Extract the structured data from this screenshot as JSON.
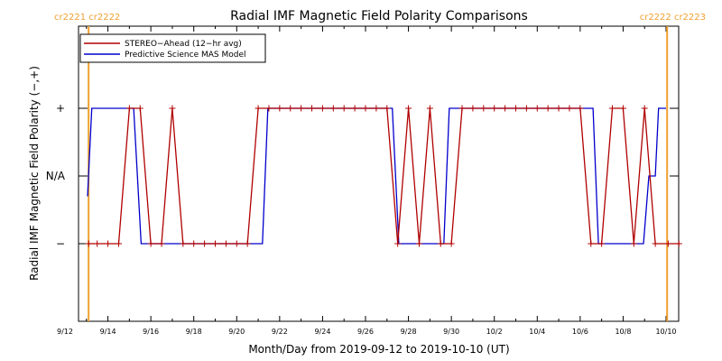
{
  "chart_data": {
    "type": "line",
    "title": "Radial IMF Magnetic Field Polarity Comparisons",
    "xlabel": "Month/Day from 2019-09-12 to 2019-10-10 (UT)",
    "ylabel": "Radial IMF Magnetic Field Polarity (−,+)",
    "x_range_days": [
      0,
      28
    ],
    "y_categories": [
      "−",
      "N/A",
      "+"
    ],
    "y_values": [
      -1,
      0,
      1
    ],
    "ylim": [
      -2,
      2
    ],
    "x_ticks": [
      {
        "day": 0,
        "label": "9/12"
      },
      {
        "day": 2,
        "label": "9/14"
      },
      {
        "day": 4,
        "label": "9/16"
      },
      {
        "day": 6,
        "label": "9/18"
      },
      {
        "day": 8,
        "label": "9/20"
      },
      {
        "day": 10,
        "label": "9/22"
      },
      {
        "day": 12,
        "label": "9/24"
      },
      {
        "day": 14,
        "label": "9/26"
      },
      {
        "day": 16,
        "label": "9/28"
      },
      {
        "day": 18,
        "label": "9/30"
      },
      {
        "day": 20,
        "label": "10/2"
      },
      {
        "day": 22,
        "label": "10/4"
      },
      {
        "day": 24,
        "label": "10/6"
      },
      {
        "day": 26,
        "label": "10/8"
      },
      {
        "day": 28,
        "label": "10/10"
      }
    ],
    "carrington_markers": [
      {
        "day": 1.1,
        "label": "cr2221 cr2222",
        "side": "left"
      },
      {
        "day": 28.05,
        "label": "cr2222 cr2223",
        "side": "right"
      }
    ],
    "legend_position": "top-left",
    "series": [
      {
        "name": "STEREO−Ahead (12−hr avg)",
        "color": "#b00000",
        "marker": "plus",
        "points": [
          [
            1.1,
            -1
          ],
          [
            1.5,
            -1
          ],
          [
            2.0,
            -1
          ],
          [
            2.5,
            -1
          ],
          [
            3.0,
            1
          ],
          [
            3.5,
            1
          ],
          [
            4.0,
            -1
          ],
          [
            4.5,
            -1
          ],
          [
            5.0,
            1
          ],
          [
            5.5,
            -1
          ],
          [
            6.0,
            -1
          ],
          [
            6.5,
            -1
          ],
          [
            7.0,
            -1
          ],
          [
            7.5,
            -1
          ],
          [
            8.0,
            -1
          ],
          [
            8.5,
            -1
          ],
          [
            9.0,
            1
          ],
          [
            9.5,
            1
          ],
          [
            10.0,
            1
          ],
          [
            10.5,
            1
          ],
          [
            11.0,
            1
          ],
          [
            11.5,
            1
          ],
          [
            12.0,
            1
          ],
          [
            12.5,
            1
          ],
          [
            13.0,
            1
          ],
          [
            13.5,
            1
          ],
          [
            14.0,
            1
          ],
          [
            14.5,
            1
          ],
          [
            15.0,
            1
          ],
          [
            15.5,
            -1
          ],
          [
            16.0,
            1
          ],
          [
            16.5,
            -1
          ],
          [
            17.0,
            1
          ],
          [
            17.5,
            -1
          ],
          [
            18.0,
            -1
          ],
          [
            18.5,
            1
          ],
          [
            19.0,
            1
          ],
          [
            19.5,
            1
          ],
          [
            20.0,
            1
          ],
          [
            20.5,
            1
          ],
          [
            21.0,
            1
          ],
          [
            21.5,
            1
          ],
          [
            22.0,
            1
          ],
          [
            22.5,
            1
          ],
          [
            23.0,
            1
          ],
          [
            23.5,
            1
          ],
          [
            24.0,
            1
          ],
          [
            24.5,
            -1
          ],
          [
            25.0,
            -1
          ],
          [
            25.5,
            1
          ],
          [
            26.0,
            1
          ],
          [
            26.5,
            -1
          ],
          [
            27.0,
            1
          ],
          [
            27.5,
            -1
          ],
          [
            28.1,
            -1
          ],
          [
            28.6,
            -1
          ]
        ]
      },
      {
        "name": "Predictive Science MAS Model",
        "color": "#0000cc",
        "marker": "none",
        "points": [
          [
            1.05,
            -0.3
          ],
          [
            1.25,
            1
          ],
          [
            3.2,
            1
          ],
          [
            3.55,
            -1
          ],
          [
            9.2,
            -1
          ],
          [
            9.45,
            1
          ],
          [
            15.25,
            1
          ],
          [
            15.55,
            -1
          ],
          [
            17.65,
            -1
          ],
          [
            17.9,
            1
          ],
          [
            24.6,
            1
          ],
          [
            24.85,
            -1
          ],
          [
            26.95,
            -1
          ],
          [
            27.2,
            0
          ],
          [
            27.5,
            0
          ],
          [
            27.65,
            1
          ],
          [
            28.0,
            1
          ]
        ]
      }
    ]
  }
}
